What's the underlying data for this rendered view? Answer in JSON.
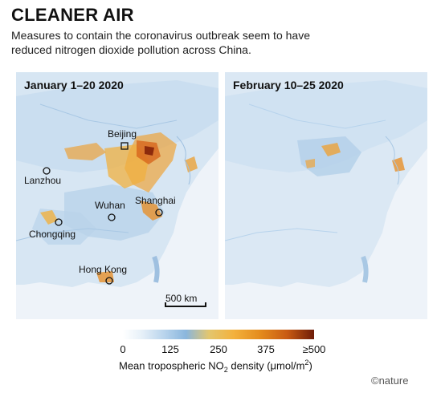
{
  "title": "CLEANER AIR",
  "subtitle": "Measures to contain the coronavirus outbreak seem to have reduced nitrogen dioxide pollution across China.",
  "panels": [
    {
      "title": "January 1–20 2020",
      "cities": [
        "Beijing",
        "Lanzhou",
        "Wuhan",
        "Shanghai",
        "Chongqing",
        "Hong Kong"
      ],
      "scale_bar": "500 km"
    },
    {
      "title": "February 10–25 2020"
    }
  ],
  "legend": {
    "ticks": [
      "0",
      "125",
      "250",
      "375",
      "≥500"
    ],
    "caption_prefix": "Mean tropospheric NO",
    "caption_sub": "2",
    "caption_mid": " density (μmol/m",
    "caption_sup": "2",
    "caption_suffix": ")",
    "colors": [
      "#ffffff",
      "#b7d3ec",
      "#8ab6dd",
      "#f3b13c",
      "#e48b1d",
      "#6e1c08"
    ]
  },
  "credit": "©nature"
}
